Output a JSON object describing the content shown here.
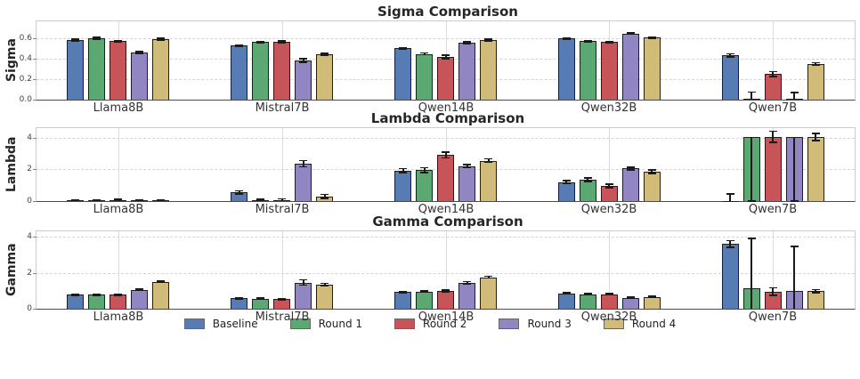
{
  "legend": {
    "items": [
      {
        "label": "Baseline",
        "color": "#577CB4"
      },
      {
        "label": "Round 1",
        "color": "#5BA872"
      },
      {
        "label": "Round 2",
        "color": "#C65458"
      },
      {
        "label": "Round 3",
        "color": "#9186C2"
      },
      {
        "label": "Round 4",
        "color": "#D0BB78"
      }
    ],
    "position": "bottom-center"
  },
  "colors": {
    "bar_edge": "#1f1f1f",
    "error_bar": "#1a1a1a",
    "h_gridline": "#d5d5d5",
    "v_gridline": "#dcdcdc",
    "axis_spine": "#cccccc",
    "bottom_axis": "#4a4a4a"
  },
  "chart_data": [
    {
      "type": "bar",
      "title": "Sigma Comparison",
      "ylabel": "Sigma",
      "xlabel": "",
      "categories": [
        "Llama8B",
        "Mistral7B",
        "Qwen14B",
        "Qwen32B",
        "Qwen7B"
      ],
      "yticks": [
        0.0,
        0.2,
        0.4,
        0.6
      ],
      "ytick_labels": [
        "0.0",
        "0.2",
        "0.4",
        "0.6"
      ],
      "ylim": [
        0,
        0.77
      ],
      "grid": {
        "horizontal": "dashed",
        "vertical": "solid-at-category-ticks"
      },
      "series": [
        {
          "name": "Baseline",
          "color": "#577CB4",
          "values": [
            0.585,
            0.53,
            0.505,
            0.6,
            0.435
          ],
          "errors": [
            0.008,
            0.008,
            0.008,
            0.008,
            0.015
          ]
        },
        {
          "name": "Round 1",
          "color": "#5BA872",
          "values": [
            0.605,
            0.565,
            0.45,
            0.575,
            0.005
          ],
          "errors": [
            0.008,
            0.008,
            0.008,
            0.008,
            0.07
          ]
        },
        {
          "name": "Round 2",
          "color": "#C65458",
          "values": [
            0.575,
            0.57,
            0.42,
            0.565,
            0.25
          ],
          "errors": [
            0.008,
            0.01,
            0.015,
            0.008,
            0.025
          ]
        },
        {
          "name": "Round 3",
          "color": "#9186C2",
          "values": [
            0.465,
            0.385,
            0.56,
            0.65,
            0.005
          ],
          "errors": [
            0.008,
            0.015,
            0.008,
            0.008,
            0.065
          ]
        },
        {
          "name": "Round 4",
          "color": "#D0BB78",
          "values": [
            0.595,
            0.445,
            0.585,
            0.61,
            0.35
          ],
          "errors": [
            0.008,
            0.008,
            0.008,
            0.008,
            0.012
          ]
        }
      ]
    },
    {
      "type": "bar",
      "title": "Lambda Comparison",
      "ylabel": "Lambda",
      "xlabel": "",
      "categories": [
        "Llama8B",
        "Mistral7B",
        "Qwen14B",
        "Qwen32B",
        "Qwen7B"
      ],
      "yticks": [
        0,
        2,
        4
      ],
      "ytick_labels": [
        "0",
        "2",
        "4"
      ],
      "ylim": [
        0,
        4.6
      ],
      "grid": {
        "horizontal": "dashed",
        "vertical": "solid-at-category-ticks"
      },
      "series": [
        {
          "name": "Baseline",
          "color": "#577CB4",
          "values": [
            0.03,
            0.55,
            1.92,
            1.2,
            0.02
          ],
          "errors": [
            0.06,
            0.1,
            0.12,
            0.08,
            0.42
          ]
        },
        {
          "name": "Round 1",
          "color": "#5BA872",
          "values": [
            0.03,
            0.03,
            1.95,
            1.35,
            4.05
          ],
          "errors": [
            0.06,
            0.08,
            0.15,
            0.1,
            4.05
          ]
        },
        {
          "name": "Round 2",
          "color": "#C65458",
          "values": [
            0.03,
            0.03,
            2.9,
            0.95,
            4.05
          ],
          "errors": [
            0.08,
            0.1,
            0.18,
            0.1,
            0.35
          ]
        },
        {
          "name": "Round 3",
          "color": "#9186C2",
          "values": [
            0.03,
            2.35,
            2.2,
            2.05,
            4.05
          ],
          "errors": [
            0.06,
            0.2,
            0.1,
            0.08,
            4.05
          ]
        },
        {
          "name": "Round 4",
          "color": "#D0BB78",
          "values": [
            0.03,
            0.3,
            2.55,
            1.85,
            4.05
          ],
          "errors": [
            0.06,
            0.13,
            0.12,
            0.1,
            0.22
          ]
        }
      ]
    },
    {
      "type": "bar",
      "title": "Gamma Comparison",
      "ylabel": "Gamma",
      "xlabel": "",
      "categories": [
        "Llama8B",
        "Mistral7B",
        "Qwen14B",
        "Qwen32B",
        "Qwen7B"
      ],
      "yticks": [
        0,
        2,
        4
      ],
      "ytick_labels": [
        "0",
        "2",
        "4"
      ],
      "ylim": [
        0,
        4.3
      ],
      "grid": {
        "horizontal": "dashed",
        "vertical": "solid-at-category-ticks"
      },
      "series": [
        {
          "name": "Baseline",
          "color": "#577CB4",
          "values": [
            0.78,
            0.58,
            0.92,
            0.85,
            3.6
          ],
          "errors": [
            0.03,
            0.03,
            0.04,
            0.03,
            0.18
          ]
        },
        {
          "name": "Round 1",
          "color": "#5BA872",
          "values": [
            0.78,
            0.55,
            0.96,
            0.8,
            1.15
          ],
          "errors": [
            0.03,
            0.03,
            0.04,
            0.03,
            2.75
          ]
        },
        {
          "name": "Round 2",
          "color": "#C65458",
          "values": [
            0.78,
            0.52,
            1.0,
            0.8,
            0.95
          ],
          "errors": [
            0.03,
            0.03,
            0.05,
            0.03,
            0.22
          ]
        },
        {
          "name": "Round 3",
          "color": "#9186C2",
          "values": [
            1.05,
            1.45,
            1.45,
            0.6,
            1.0
          ],
          "errors": [
            0.04,
            0.15,
            0.06,
            0.03,
            2.45
          ]
        },
        {
          "name": "Round 4",
          "color": "#D0BB78",
          "values": [
            1.5,
            1.35,
            1.75,
            0.65,
            0.98
          ],
          "errors": [
            0.04,
            0.06,
            0.05,
            0.03,
            0.08
          ]
        }
      ]
    }
  ]
}
